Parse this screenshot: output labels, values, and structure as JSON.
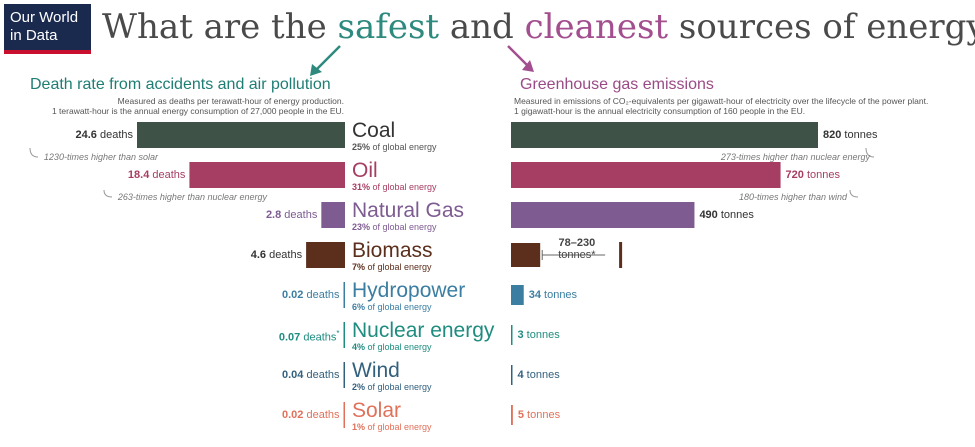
{
  "logo": {
    "line1": "Our World",
    "line2": "in Data"
  },
  "title": {
    "part1": "What are the ",
    "safe": "safest",
    "part2": " and ",
    "clean": "cleanest",
    "part3": " sources of energy?"
  },
  "left_panel": {
    "title": "Death rate from accidents and air pollution",
    "subtitle1": "Measured as deaths per terawatt-hour of energy production.",
    "subtitle2": "1 terawatt-hour is the annual energy consumption of 27,000 people in the EU."
  },
  "right_panel": {
    "title": "Greenhouse gas emissions",
    "subtitle1": "Measured in emissions of CO₂-equivalents per gigawatt-hour of electricity over the lifecycle of the power plant.",
    "subtitle2": "1 gigawatt-hour is the annual electricity consumption of 160 people in the EU."
  },
  "chart_data": {
    "type": "bar",
    "title": "What are the safest and cleanest sources of energy?",
    "categories": [
      "Coal",
      "Oil",
      "Natural Gas",
      "Biomass",
      "Hydropower",
      "Nuclear energy",
      "Wind",
      "Solar"
    ],
    "shares": [
      "25%",
      "31%",
      "23%",
      "7%",
      "6%",
      "4%",
      "2%",
      "1%"
    ],
    "share_suffix": "of global energy",
    "colors": [
      "#3f5248",
      "#a63d63",
      "#7e5b91",
      "#5b2f1c",
      "#3b7ea1",
      "#1f8c80",
      "#33607d",
      "#e0715b"
    ],
    "series": [
      {
        "name": "Death rate from accidents and air pollution",
        "unit": "deaths",
        "values": [
          24.6,
          18.4,
          2.8,
          4.6,
          0.02,
          0.07,
          0.04,
          0.02
        ],
        "labels": [
          "24.6",
          "18.4",
          "2.8",
          "4.6",
          "0.02",
          "0.07",
          "0.04",
          "0.02"
        ],
        "footnote_marks": [
          "",
          "",
          "",
          "",
          "",
          "*",
          "",
          ""
        ]
      },
      {
        "name": "Greenhouse gas emissions",
        "unit": "tonnes",
        "values": [
          820,
          720,
          490,
          154,
          34,
          3,
          4,
          5
        ],
        "labels": [
          "820",
          "720",
          "490",
          "78–230",
          "34",
          "3",
          "4",
          "5"
        ],
        "range": [
          null,
          null,
          null,
          [
            78,
            230
          ],
          null,
          null,
          null,
          null
        ]
      }
    ],
    "annotations": {
      "coal_death": "1230-times higher than solar",
      "oil_death": "263-times higher than nuclear energy",
      "coal_ghg": "273-times higher than nuclear energy",
      "oil_ghg": "180-times higher than wind"
    }
  }
}
